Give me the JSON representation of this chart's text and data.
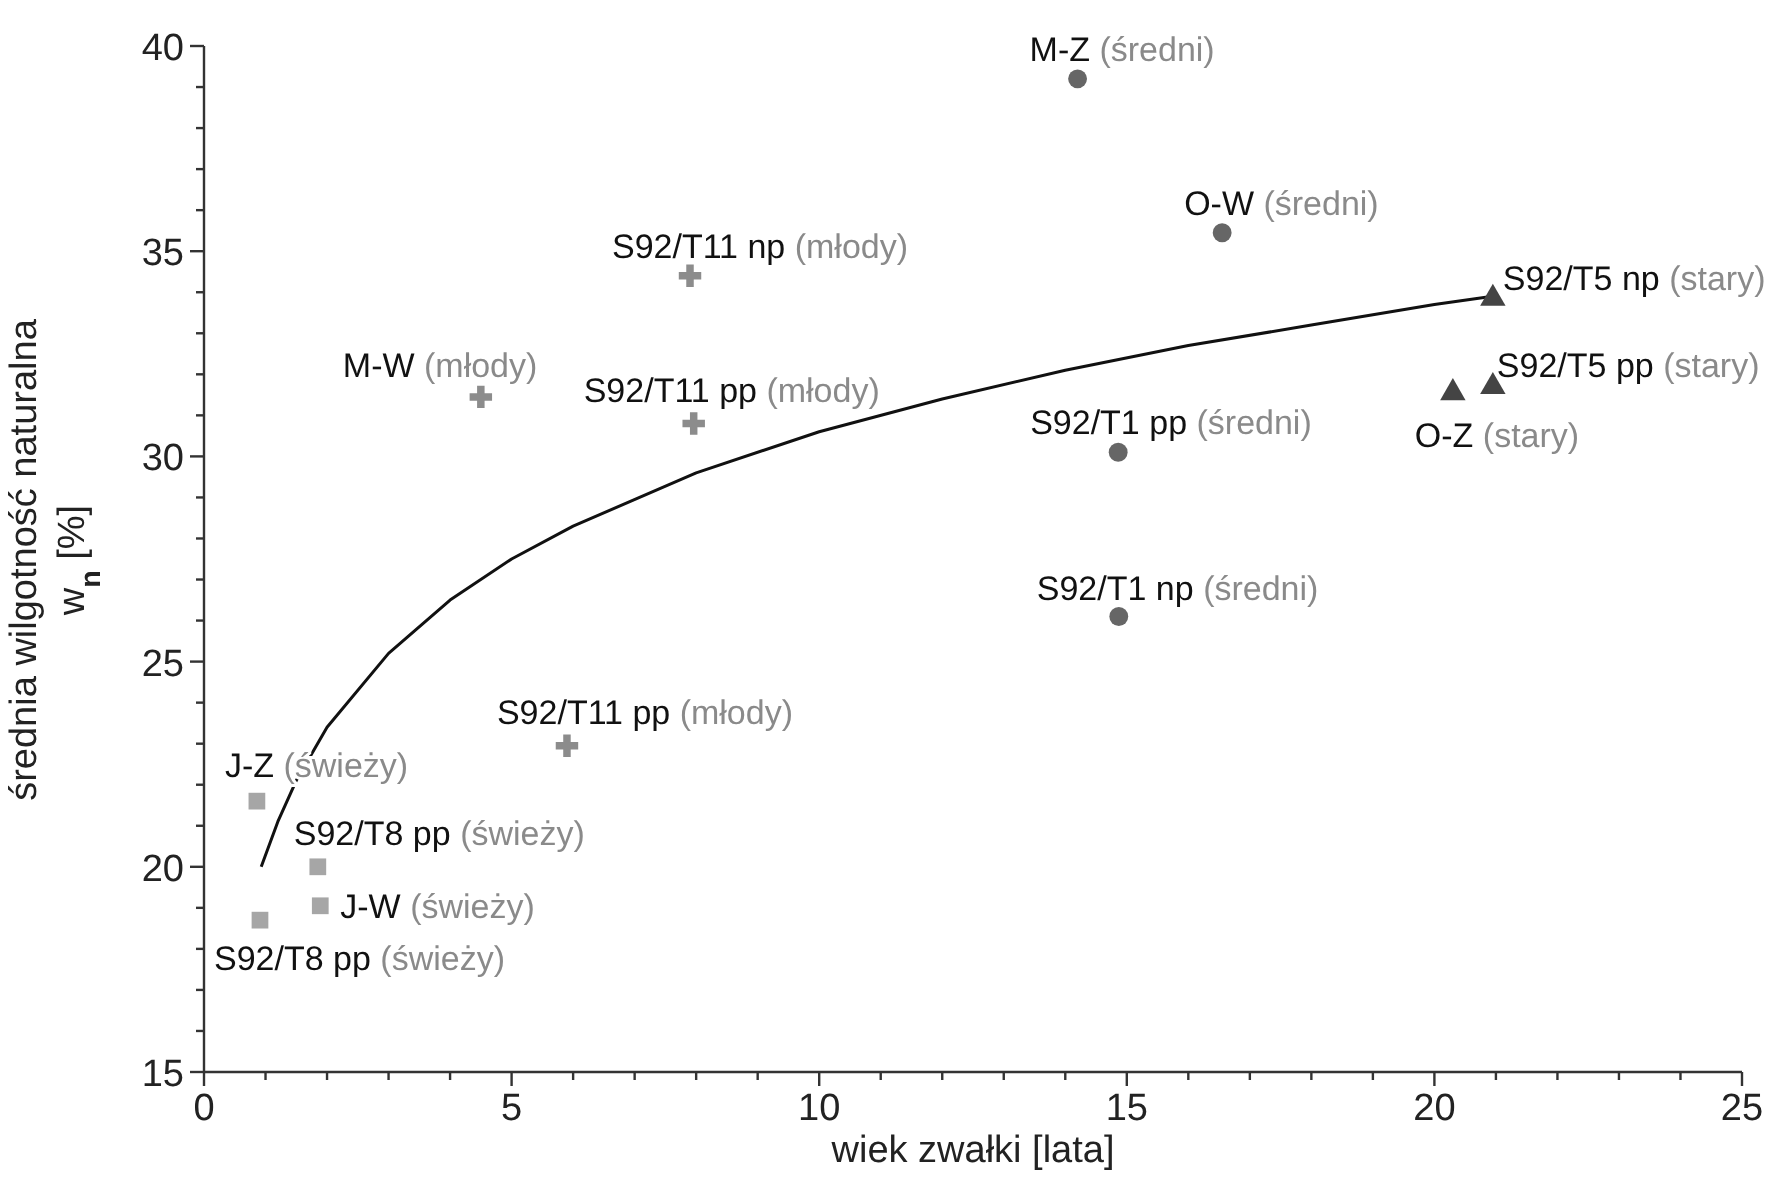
{
  "chart_data": {
    "type": "scatter",
    "xlabel": "wiek zwałki [lata]",
    "ylabel": "średnia wilgotność naturalna\nw$_{n}$ [%]",
    "xlim": [
      0,
      25
    ],
    "ylim": [
      15,
      40
    ],
    "xticks": [
      0,
      {
        "value": 1,
        "label": null
      },
      {
        "value": 2,
        "label": null
      },
      {
        "value": 3,
        "label": null
      },
      {
        "value": 4,
        "label": null
      },
      5,
      {
        "value": 6,
        "label": null
      },
      {
        "value": 7,
        "label": null
      },
      {
        "value": 8,
        "label": null
      },
      {
        "value": 9,
        "label": null
      },
      10,
      {
        "value": 11,
        "label": null
      },
      {
        "value": 12,
        "label": null
      },
      {
        "value": 13,
        "label": null
      },
      {
        "value": 14,
        "label": null
      },
      15,
      {
        "value": 16,
        "label": null
      },
      {
        "value": 17,
        "label": null
      },
      {
        "value": 18,
        "label": null
      },
      {
        "value": 19,
        "label": null
      },
      20,
      {
        "value": 21,
        "label": null
      },
      {
        "value": 22,
        "label": null
      },
      {
        "value": 23,
        "label": null
      },
      {
        "value": 24,
        "label": null
      },
      25
    ],
    "yticks": [
      15,
      {
        "value": 16,
        "label": null
      },
      {
        "value": 17,
        "label": null
      },
      {
        "value": 18,
        "label": null
      },
      {
        "value": 19,
        "label": null
      },
      20,
      {
        "value": 21,
        "label": null
      },
      {
        "value": 22,
        "label": null
      },
      {
        "value": 23,
        "label": null
      },
      {
        "value": 24,
        "label": null
      },
      25,
      {
        "value": 26,
        "label": null
      },
      {
        "value": 27,
        "label": null
      },
      {
        "value": 28,
        "label": null
      },
      {
        "value": 29,
        "label": null
      },
      30,
      {
        "value": 31,
        "label": null
      },
      {
        "value": 32,
        "label": null
      },
      {
        "value": 33,
        "label": null
      },
      {
        "value": 34,
        "label": null
      },
      35,
      {
        "value": 36,
        "label": null
      },
      {
        "value": 37,
        "label": null
      },
      {
        "value": 38,
        "label": null
      },
      {
        "value": 39,
        "label": null
      },
      40
    ],
    "grid": false,
    "series": [
      {
        "marker": "circle",
        "color": "#666666",
        "x": [
          14.2,
          16.55,
          14.86,
          14.87
        ],
        "values": [
          39.2,
          35.45,
          30.1,
          26.1
        ]
      },
      {
        "marker": "triangle",
        "color": "#444444",
        "x": [
          20.95,
          20.95,
          20.3
        ],
        "values": [
          33.85,
          31.7,
          31.55
        ]
      },
      {
        "marker": "cross",
        "color": "#8c8c8c",
        "x": [
          7.9,
          4.5,
          7.96,
          5.9
        ],
        "values": [
          34.4,
          31.45,
          30.8,
          22.95
        ]
      },
      {
        "marker": "square",
        "color": "#a6a6a6",
        "x": [
          0.86,
          1.85,
          1.89,
          0.91
        ],
        "values": [
          21.6,
          20.0,
          19.05,
          18.7
        ]
      },
      {
        "type": "line",
        "marker": "none",
        "line_style": "solid",
        "color": "#111111",
        "x": [
          0.93,
          1.2,
          1.5,
          2,
          3,
          4,
          5,
          6,
          8,
          10,
          12,
          14,
          16,
          18,
          20,
          20.95
        ],
        "values": [
          20.0,
          21.1,
          22.1,
          23.4,
          25.2,
          26.5,
          27.5,
          28.3,
          29.6,
          30.6,
          31.4,
          32.1,
          32.7,
          33.2,
          33.7,
          33.9
        ]
      }
    ],
    "annotations": [
      {
        "text": "M-Z (średni)",
        "x": 14.2,
        "y": 39.2
      },
      {
        "text": "O-W (średni)",
        "x": 16.55,
        "y": 35.45
      },
      {
        "text": "S92/T1 pp (średni)",
        "x": 14.86,
        "y": 30.1
      },
      {
        "text": "S92/T1 np (średni)",
        "x": 14.87,
        "y": 26.1
      },
      {
        "text": "S92/T5 np (stary)",
        "x": 20.95,
        "y": 33.85
      },
      {
        "text": "S92/T5 pp (stary)",
        "x": 20.95,
        "y": 31.7
      },
      {
        "text": "O-Z (stary)",
        "x": 20.3,
        "y": 31.55
      },
      {
        "text": "S92/T11 np (młody)",
        "x": 7.9,
        "y": 34.4
      },
      {
        "text": "M-W (młody)",
        "x": 4.5,
        "y": 31.45
      },
      {
        "text": "S92/T11 pp (młody)",
        "x": 7.96,
        "y": 30.8
      },
      {
        "text": "S92/T11 pp (młody)",
        "x": 5.9,
        "y": 22.95
      },
      {
        "text": "J-Z (świeży)",
        "x": 0.86,
        "y": 21.6
      },
      {
        "text": "S92/T8 pp (świeży)",
        "x": 1.85,
        "y": 20.0
      },
      {
        "text": "J-W (świeży)",
        "x": 1.89,
        "y": 19.05
      },
      {
        "text": "S92/T8 pp (świeży)",
        "x": 0.91,
        "y": 18.7
      }
    ]
  }
}
